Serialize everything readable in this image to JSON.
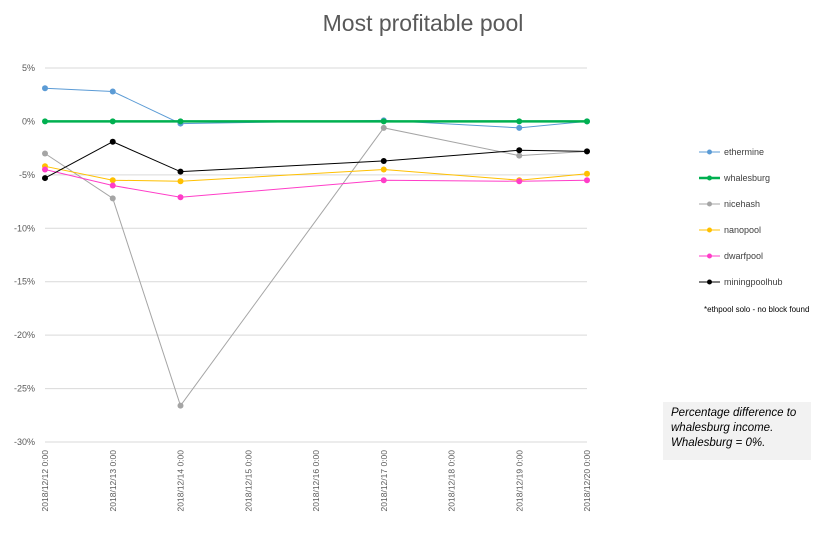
{
  "chart_data": {
    "type": "line",
    "title": "Most profitable pool",
    "xlabel": "",
    "ylabel": "",
    "ylim": [
      -30,
      5
    ],
    "y_ticks": [
      "5%",
      "0%",
      "-5%",
      "-10%",
      "-15%",
      "-20%",
      "-25%",
      "-30%"
    ],
    "y_tick_values": [
      5,
      0,
      -5,
      -10,
      -15,
      -20,
      -25,
      -30
    ],
    "x_ticks": [
      "2018/12/12 0:00",
      "2018/12/13 0:00",
      "2018/12/14 0:00",
      "2018/12/15 0:00",
      "2018/12/16 0:00",
      "2018/12/17 0:00",
      "2018/12/18 0:00",
      "2018/12/19 0:00",
      "2018/12/20 0:00"
    ],
    "x": [
      0,
      1,
      2,
      5,
      7,
      8
    ],
    "grid": "horizontal",
    "legend": "right",
    "series": [
      {
        "name": "ethermine",
        "color": "#5b9bd5",
        "width": 1,
        "values": [
          3.1,
          2.8,
          -0.2,
          0.1,
          -0.6,
          0
        ]
      },
      {
        "name": "whalesburg",
        "color": "#00b050",
        "width": 2.5,
        "values": [
          0,
          0,
          0,
          0,
          0,
          0
        ]
      },
      {
        "name": "nicehash",
        "color": "#a5a5a5",
        "width": 1,
        "values": [
          -3,
          -7.2,
          -26.6,
          -0.6,
          -3.2,
          -2.8
        ]
      },
      {
        "name": "nanopool",
        "color": "#ffc000",
        "width": 1,
        "values": [
          -4.2,
          -5.5,
          -5.6,
          -4.5,
          -5.5,
          -4.9
        ]
      },
      {
        "name": "dwarfpool",
        "color": "#ff3dc8",
        "width": 1,
        "values": [
          -4.5,
          -6,
          -7.1,
          -5.5,
          -5.6,
          -5.5
        ]
      },
      {
        "name": "miningpoolhub",
        "color": "#000000",
        "width": 1,
        "values": [
          -5.3,
          -1.9,
          -4.7,
          -3.7,
          -2.7,
          -2.8
        ]
      }
    ]
  },
  "legend_note": "*ethpool solo - no block found",
  "note_box": {
    "line1": "Percentage difference to",
    "line2": "whalesburg income.",
    "line3": "Whalesburg = 0%."
  }
}
